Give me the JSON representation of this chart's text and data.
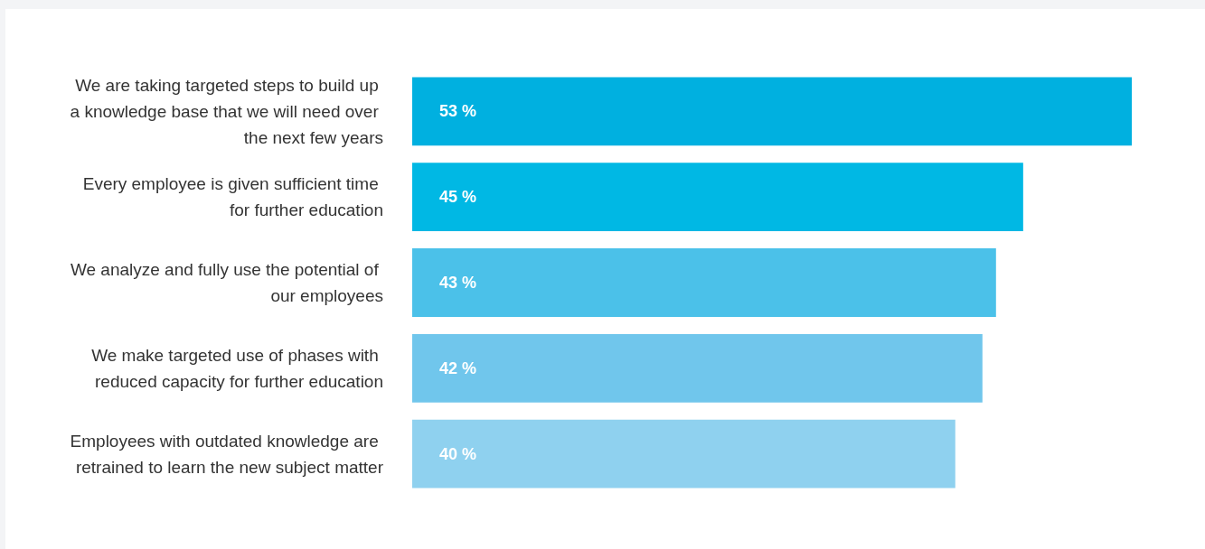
{
  "chart_data": {
    "type": "bar",
    "orientation": "horizontal",
    "categories": [
      "We are taking targeted steps to build up a knowledge base that we will need over the next few years",
      "Every employee is given sufficient time for further education",
      "We analyze and fully use the potential of our employees",
      "We make targeted use of phases with reduced capacity for further education",
      "Employees with outdated knowledge are retrained to learn the new subject matter"
    ],
    "values": [
      53,
      45,
      43,
      42,
      40
    ],
    "colors": [
      "#00b0e0",
      "#00b8e4",
      "#4bc1e9",
      "#70c6ec",
      "#8fd1ef"
    ],
    "value_labels": [
      "53 %",
      "45 %",
      "43 %",
      "42 %",
      "40 %"
    ],
    "tick_labels": "y"
  }
}
